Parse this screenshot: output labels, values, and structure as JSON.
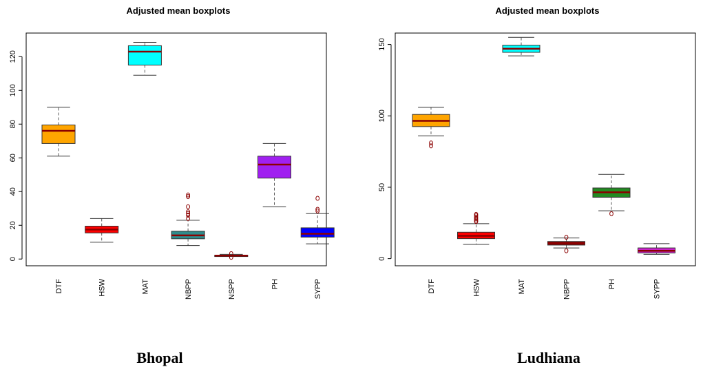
{
  "chart_data": [
    {
      "type": "boxplot",
      "title": "Adjusted mean boxplots",
      "caption": "Bhopal",
      "ylim": [
        -4,
        134
      ],
      "yticks": [
        0,
        20,
        40,
        60,
        80,
        100,
        120
      ],
      "ytick_labels": [
        "0",
        "20",
        "40",
        "60",
        "80",
        "100",
        "120"
      ],
      "categories": [
        "DTF",
        "HSW",
        "MAT",
        "NBPP",
        "NSPP",
        "PH",
        "SYPP"
      ],
      "boxes": [
        {
          "name": "DTF",
          "color": "#FFA500",
          "min": 61,
          "q1": 68.5,
          "median": 76,
          "q3": 79.5,
          "max": 90,
          "outliers": []
        },
        {
          "name": "HSW",
          "color": "#FF0000",
          "min": 10,
          "q1": 15.5,
          "median": 17.5,
          "q3": 19.5,
          "max": 24,
          "outliers": []
        },
        {
          "name": "MAT",
          "color": "#00FFFF",
          "min": 109,
          "q1": 115,
          "median": 123,
          "q3": 126.5,
          "max": 128.5,
          "outliers": []
        },
        {
          "name": "NBPP",
          "color": "#2E8B8B",
          "min": 8,
          "q1": 12,
          "median": 14,
          "q3": 16.5,
          "max": 23,
          "outliers": [
            24,
            26,
            27,
            28,
            31,
            37,
            38
          ]
        },
        {
          "name": "NSPP",
          "color": "#8B0000",
          "min": 1.5,
          "q1": 1.8,
          "median": 2,
          "q3": 2.3,
          "max": 2.8,
          "outliers": [
            1.0,
            3.2
          ]
        },
        {
          "name": "PH",
          "color": "#A020F0",
          "min": 31,
          "q1": 48,
          "median": 56,
          "q3": 61,
          "max": 68.5,
          "outliers": []
        },
        {
          "name": "SYPP",
          "color": "#0000FF",
          "min": 9,
          "q1": 13,
          "median": 15,
          "q3": 18.5,
          "max": 27,
          "outliers": [
            28.5,
            29.5,
            36
          ]
        }
      ]
    },
    {
      "type": "boxplot",
      "title": "Adjusted mean boxplots",
      "caption": "Ludhiana",
      "ylim": [
        -5,
        158
      ],
      "yticks": [
        0,
        50,
        100,
        150
      ],
      "ytick_labels": [
        "0",
        "50",
        "100",
        "150"
      ],
      "categories": [
        "DTF",
        "HSW",
        "MAT",
        "NBPP",
        "PH",
        "SYPP"
      ],
      "boxes": [
        {
          "name": "DTF",
          "color": "#FFA500",
          "min": 86,
          "q1": 92.5,
          "median": 96.5,
          "q3": 101,
          "max": 106,
          "outliers": [
            79,
            81
          ]
        },
        {
          "name": "HSW",
          "color": "#FF0000",
          "min": 10,
          "q1": 14,
          "median": 16,
          "q3": 18.5,
          "max": 24.5,
          "outliers": [
            26,
            27,
            28,
            29,
            30,
            31
          ]
        },
        {
          "name": "MAT",
          "color": "#00FFFF",
          "min": 142,
          "q1": 144.5,
          "median": 147,
          "q3": 149.5,
          "max": 155,
          "outliers": []
        },
        {
          "name": "NBPP",
          "color": "#8B0000",
          "min": 7.5,
          "q1": 9.5,
          "median": 11,
          "q3": 12,
          "max": 14.5,
          "outliers": [
            5.5,
            15
          ]
        },
        {
          "name": "PH",
          "color": "#228B22",
          "min": 33.5,
          "q1": 43,
          "median": 46.5,
          "q3": 49.5,
          "max": 59,
          "outliers": [
            31.5
          ]
        },
        {
          "name": "SYPP",
          "color": "#CC22CC",
          "min": 3,
          "q1": 4,
          "median": 5.5,
          "q3": 7.5,
          "max": 10.5,
          "outliers": []
        }
      ]
    }
  ]
}
